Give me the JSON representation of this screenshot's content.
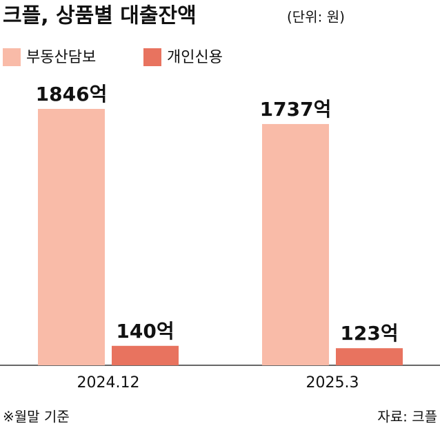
{
  "chart_data": {
    "type": "bar",
    "title": "크플, 상품별 대출잔액",
    "subtitle": "(단위: 원)",
    "categories": [
      "2024.12",
      "2025.3"
    ],
    "series": [
      {
        "name": "부동산담보",
        "color": "#f9bba8",
        "values": [
          1846,
          1737
        ],
        "value_labels": [
          "1846억",
          "1737억"
        ]
      },
      {
        "name": "개인신용",
        "color": "#e8735f",
        "values": [
          140,
          123
        ],
        "value_labels": [
          "140억",
          "123억"
        ]
      }
    ],
    "note": "※월말 기준",
    "source": "자료: 크플"
  }
}
